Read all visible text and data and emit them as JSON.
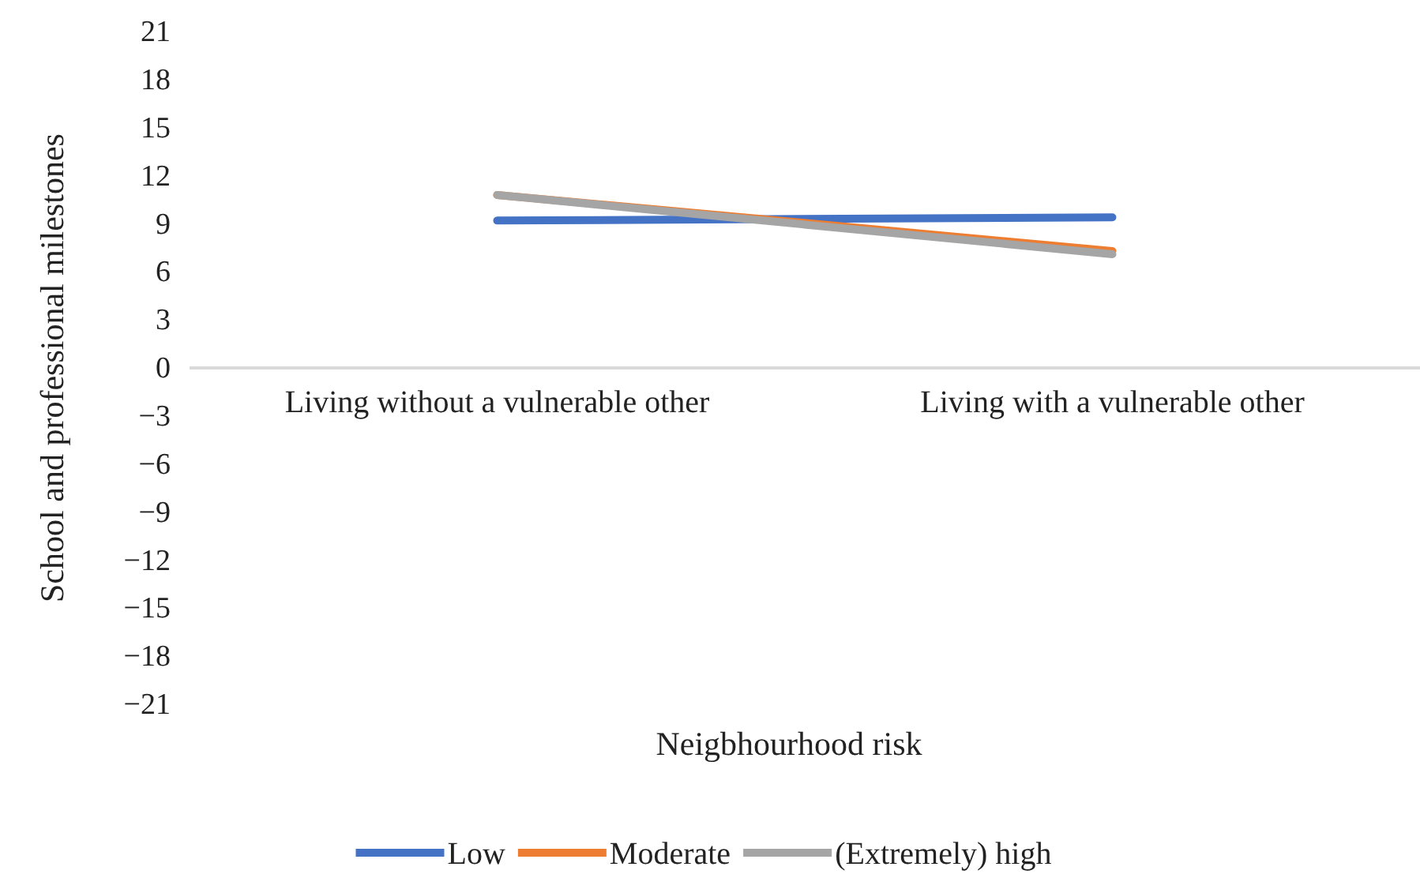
{
  "chart_data": {
    "type": "line",
    "xlabel": "Neigbhourhood risk",
    "ylabel": "School and professional milestones",
    "categories": [
      "Living without a vulnerable other",
      "Living with a vulnerable other"
    ],
    "series": [
      {
        "name": "Low",
        "color": "#4472c4",
        "values": [
          9.2,
          9.4
        ]
      },
      {
        "name": "Moderate",
        "color": "#ed7d31",
        "values": [
          10.8,
          7.3
        ]
      },
      {
        "name": "(Extremely) high",
        "color": "#a5a5a5",
        "values": [
          10.8,
          7.1
        ]
      }
    ],
    "ylim": [
      -21,
      21
    ],
    "yticks": [
      {
        "value": -21,
        "label": "−21"
      },
      {
        "value": -18,
        "label": "−18"
      },
      {
        "value": -15,
        "label": "−15"
      },
      {
        "value": -12,
        "label": "−12"
      },
      {
        "value": -9,
        "label": "−9"
      },
      {
        "value": -6,
        "label": "−6"
      },
      {
        "value": -3,
        "label": "−3"
      },
      0,
      3,
      6,
      9,
      12,
      15,
      18,
      21
    ],
    "grid": false,
    "legend": "bottom",
    "marker": "none",
    "line_style": "solid"
  }
}
